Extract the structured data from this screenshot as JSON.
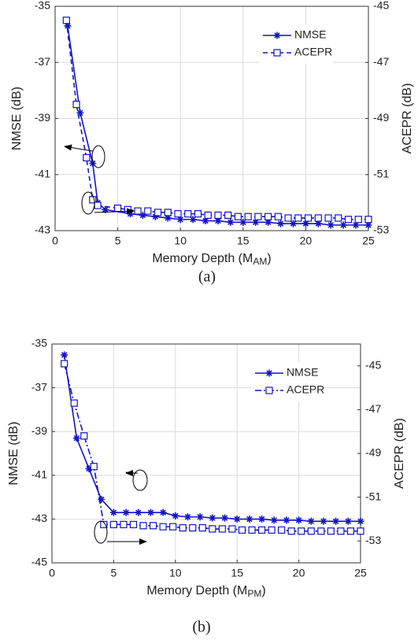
{
  "chart_data": [
    {
      "type": "line",
      "caption": "(a)",
      "xlabel": [
        "Memory Depth (M",
        "AM",
        ")"
      ],
      "ylabel": "NMSE (dB)",
      "y2label": "ACEPR (dB)",
      "xlim": [
        0,
        25
      ],
      "xticks": [
        0,
        5,
        10,
        15,
        20,
        25
      ],
      "ylim": [
        -43,
        -35
      ],
      "yticks": [
        -43,
        -41,
        -39,
        -37,
        -35
      ],
      "y2lim": [
        -53,
        -45
      ],
      "y2ticks": [
        -53,
        -51,
        -49,
        -47,
        -45
      ],
      "grid": true,
      "legend": "upper right",
      "series": [
        {
          "name": "NMSE",
          "color": "#1414c8",
          "linestyle": "solid",
          "marker": "asterisk",
          "x": [
            1,
            2,
            3,
            3.4,
            4,
            6,
            7,
            8,
            9,
            10,
            11,
            12,
            13,
            14,
            15,
            16,
            17,
            18,
            19,
            20,
            21,
            22,
            23,
            24,
            25
          ],
          "values": [
            -35.7,
            -38.8,
            -40.6,
            -42.0,
            -42.25,
            -42.4,
            -42.45,
            -42.5,
            -42.55,
            -42.6,
            -42.6,
            -42.65,
            -42.65,
            -42.7,
            -42.7,
            -42.7,
            -42.7,
            -42.75,
            -42.75,
            -42.75,
            -42.75,
            -42.8,
            -42.8,
            -42.8,
            -42.8
          ]
        },
        {
          "name": "ACEPR",
          "color": "#1414c8",
          "linestyle": "dashed",
          "marker": "square",
          "axis": "y2",
          "x": [
            0.9,
            1.7,
            2.5,
            3,
            3.4,
            5,
            5.8,
            6.6,
            7.4,
            8.2,
            9,
            9.8,
            10.6,
            11.4,
            12.2,
            13,
            13.8,
            14.6,
            15.4,
            16.2,
            17,
            17.8,
            18.6,
            19.4,
            20.2,
            21,
            21.8,
            22.6,
            23.4,
            24.2,
            25
          ],
          "values": [
            -45.5,
            -48.5,
            -50.4,
            -51.9,
            -52.1,
            -52.2,
            -52.25,
            -52.3,
            -52.3,
            -52.35,
            -52.35,
            -52.4,
            -52.4,
            -52.4,
            -52.45,
            -52.45,
            -52.45,
            -52.5,
            -52.5,
            -52.5,
            -52.5,
            -52.5,
            -52.55,
            -52.55,
            -52.55,
            -52.55,
            -52.55,
            -52.55,
            -52.6,
            -52.6,
            -52.6
          ]
        }
      ]
    },
    {
      "type": "line",
      "caption": "(b)",
      "xlabel": [
        "Memory Depth (M",
        "PM",
        ")"
      ],
      "ylabel": "NMSE (dB)",
      "y2label": "ACEPR (dB)",
      "xlim": [
        0,
        25
      ],
      "xticks": [
        0,
        5,
        10,
        15,
        20,
        25
      ],
      "ylim": [
        -45,
        -35
      ],
      "yticks": [
        -45,
        -43,
        -41,
        -39,
        -37,
        -35
      ],
      "y2lim": [
        -54,
        -44
      ],
      "y2ticks": [
        -53,
        -51,
        -49,
        -47,
        -45
      ],
      "grid": true,
      "legend": "upper right",
      "series": [
        {
          "name": "NMSE",
          "color": "#1414c8",
          "linestyle": "solid",
          "marker": "asterisk",
          "x": [
            1,
            2,
            3,
            4,
            5,
            6,
            7,
            8,
            9,
            10,
            11,
            12,
            13,
            14,
            15,
            16,
            17,
            18,
            19,
            20,
            21,
            22,
            23,
            24,
            25
          ],
          "values": [
            -35.5,
            -39.3,
            -40.7,
            -42.1,
            -42.7,
            -42.7,
            -42.7,
            -42.7,
            -42.7,
            -42.85,
            -42.9,
            -42.9,
            -42.95,
            -42.95,
            -43,
            -43,
            -43,
            -43.05,
            -43.05,
            -43.05,
            -43.1,
            -43.1,
            -43.1,
            -43.1,
            -43.1
          ]
        },
        {
          "name": "ACEPR",
          "color": "#1414c8",
          "linestyle": "dashdot",
          "marker": "square",
          "axis": "y2",
          "x": [
            1,
            1.8,
            2.6,
            3.4,
            4.2,
            5,
            5.8,
            6.6,
            7.4,
            8.2,
            9,
            9.8,
            10.6,
            11.4,
            12.2,
            13,
            13.8,
            14.6,
            15.4,
            16.2,
            17,
            17.8,
            18.6,
            19.4,
            20.2,
            21,
            21.8,
            22.6,
            23.4,
            24.2,
            25
          ],
          "values": [
            -44.9,
            -46.7,
            -48.2,
            -49.6,
            -52.25,
            -52.25,
            -52.25,
            -52.25,
            -52.3,
            -52.3,
            -52.35,
            -52.35,
            -52.4,
            -52.4,
            -52.4,
            -52.45,
            -52.45,
            -52.45,
            -52.5,
            -52.5,
            -52.5,
            -52.5,
            -52.5,
            -52.55,
            -52.55,
            -52.55,
            -52.55,
            -52.55,
            -52.55,
            -52.55,
            -52.55
          ]
        }
      ]
    }
  ]
}
